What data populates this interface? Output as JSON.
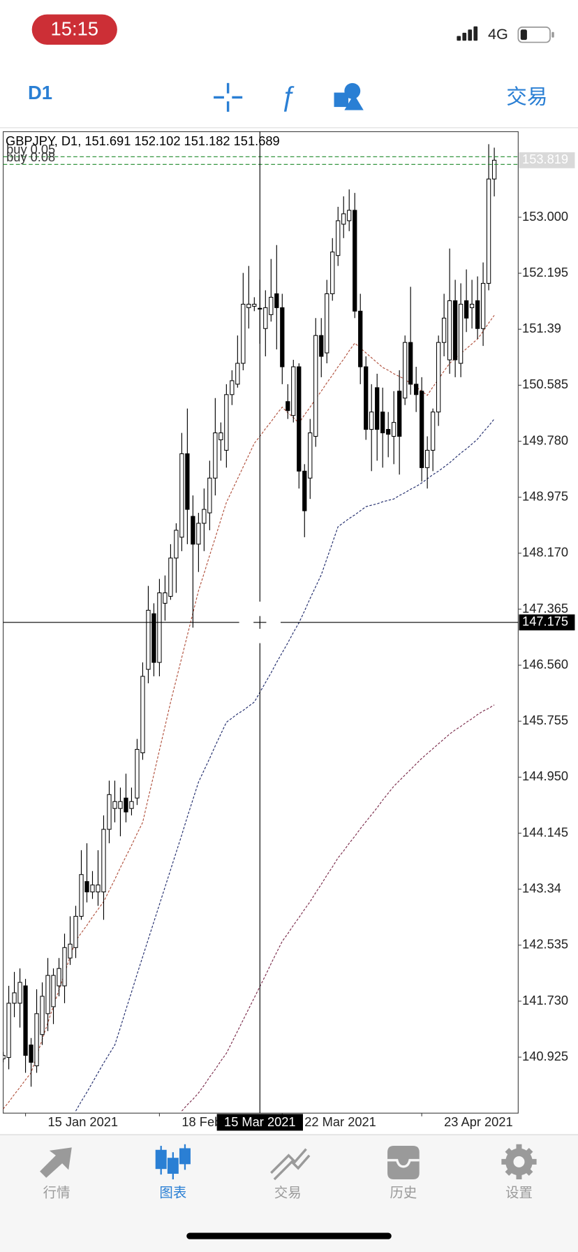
{
  "status_bar": {
    "time": "15:15",
    "network": "4G"
  },
  "toolbar": {
    "timeframe": "D1",
    "trade": "交易"
  },
  "chart_data": {
    "type": "candlestick",
    "header": "GBPJPY, D1, 151.691 152.102 151.182 151.689",
    "categories": [
      null,
      null,
      null,
      null,
      "15 Jan 2021",
      null,
      null,
      null,
      null,
      null,
      null,
      null,
      null,
      null,
      null,
      null,
      null,
      null,
      null,
      null,
      null,
      null,
      null,
      null,
      null,
      null,
      null,
      null,
      "18 Feb 2021",
      null,
      null,
      null,
      null,
      null,
      null,
      null,
      null,
      null,
      null,
      null,
      null,
      null,
      null,
      null,
      null,
      null,
      null,
      null,
      null,
      null,
      "22 Mar 2021",
      null,
      null,
      null,
      null,
      null,
      null,
      null,
      null,
      null,
      null,
      null,
      null,
      null,
      null,
      null,
      null,
      null,
      null,
      null,
      null,
      null,
      null,
      null,
      null,
      "23 Apr 2021",
      null,
      null,
      null,
      null,
      null,
      null,
      null,
      null,
      null,
      null,
      null,
      null,
      null
    ],
    "open": [
      140.9,
      140.92,
      141.7,
      141.7,
      141.95,
      141.1,
      140.8,
      141.25,
      141.55,
      141.65,
      141.95,
      141.95,
      142.35,
      142.5,
      142.95,
      143.45,
      143.3,
      143.3,
      143.3,
      144.2,
      144.5,
      144.5,
      144.65,
      144.5,
      144.65,
      145.3,
      146.5,
      147.3,
      146.6,
      147.45,
      147.55,
      148.1,
      148.4,
      149.6,
      148.7,
      148.3,
      148.6,
      148.75,
      149.25,
      149.8,
      149.65,
      150.45,
      150.6,
      150.9,
      151.7,
      151.72,
      151.691,
      151.4,
      151.6,
      151.9,
      151.7,
      150.35,
      150.15,
      150.85,
      149.35,
      149.25,
      149.85,
      151.3,
      151.05,
      151.9,
      152.45,
      152.9,
      152.95,
      153.1,
      151.65,
      150.85,
      149.95,
      150.55,
      150.2,
      149.95,
      149.85,
      150.5,
      150.4,
      151.2,
      150.6,
      150.5,
      149.4,
      149.65,
      150.2,
      151.2,
      150.95,
      151.8,
      150.9,
      151.8,
      151.7,
      151.8,
      151.4,
      152.05,
      153.55
    ],
    "high": [
      141.0,
      141.95,
      142.15,
      142.2,
      142.05,
      141.2,
      141.9,
      142.0,
      142.35,
      142.2,
      142.35,
      142.7,
      142.95,
      143.1,
      143.9,
      144.0,
      143.6,
      143.9,
      144.4,
      144.9,
      144.9,
      144.8,
      145.0,
      144.8,
      145.5,
      146.6,
      147.7,
      147.45,
      147.8,
      147.85,
      148.3,
      148.6,
      149.9,
      150.25,
      149.0,
      148.75,
      149.1,
      149.5,
      150.4,
      150.05,
      150.6,
      150.8,
      151.3,
      152.2,
      152.3,
      151.85,
      152.102,
      151.95,
      152.4,
      152.6,
      151.9,
      150.6,
      150.95,
      150.9,
      149.45,
      150.1,
      151.55,
      151.55,
      152.1,
      152.7,
      153.15,
      153.3,
      153.4,
      153.35,
      151.9,
      151.0,
      150.6,
      150.75,
      150.55,
      150.2,
      150.5,
      150.8,
      151.3,
      152.0,
      150.85,
      150.7,
      149.85,
      150.25,
      151.3,
      151.9,
      152.55,
      152.1,
      152.05,
      152.25,
      152.1,
      152.15,
      152.35,
      154.05,
      154.0
    ],
    "low": [
      140.85,
      140.75,
      141.5,
      141.35,
      140.7,
      140.5,
      140.7,
      141.1,
      141.3,
      141.4,
      141.8,
      141.7,
      142.25,
      142.35,
      142.9,
      143.15,
      143.2,
      143.1,
      142.9,
      144.0,
      144.3,
      144.1,
      144.3,
      144.4,
      144.55,
      145.2,
      146.3,
      146.4,
      146.4,
      147.2,
      147.5,
      147.6,
      148.2,
      148.3,
      147.1,
      147.9,
      148.2,
      148.5,
      149.0,
      149.5,
      149.4,
      150.3,
      150.55,
      150.8,
      151.4,
      151.65,
      151.182,
      151.0,
      151.5,
      151.1,
      150.6,
      150.1,
      150.05,
      149.1,
      148.4,
      148.95,
      149.7,
      150.7,
      150.9,
      151.8,
      152.3,
      152.7,
      152.8,
      151.55,
      150.6,
      149.8,
      149.35,
      149.5,
      149.4,
      149.55,
      149.45,
      149.3,
      150.3,
      150.45,
      150.2,
      149.2,
      149.1,
      149.35,
      150.0,
      151.0,
      150.75,
      150.7,
      150.7,
      151.35,
      151.4,
      151.25,
      151.15,
      151.95,
      153.3
    ],
    "close": [
      140.95,
      141.7,
      141.85,
      142.0,
      140.95,
      140.85,
      141.55,
      141.8,
      142.1,
      142.1,
      142.2,
      142.5,
      142.55,
      142.95,
      143.55,
      143.3,
      143.4,
      143.4,
      144.2,
      144.7,
      144.6,
      144.6,
      144.45,
      144.6,
      145.35,
      146.4,
      147.35,
      146.6,
      147.6,
      147.6,
      148.1,
      148.5,
      149.6,
      148.8,
      148.3,
      148.6,
      148.8,
      149.25,
      149.9,
      149.9,
      150.45,
      150.65,
      150.9,
      151.75,
      151.75,
      151.75,
      151.689,
      151.7,
      151.85,
      151.7,
      150.85,
      150.22,
      150.85,
      149.35,
      148.78,
      149.9,
      151.3,
      151.0,
      151.9,
      152.5,
      152.95,
      153.05,
      153.1,
      151.65,
      150.85,
      149.95,
      150.2,
      149.95,
      149.9,
      149.88,
      150.05,
      149.85,
      151.2,
      150.6,
      150.45,
      149.4,
      149.65,
      150.2,
      151.2,
      151.55,
      151.8,
      150.95,
      151.75,
      151.55,
      151.75,
      151.4,
      152.05,
      153.55,
      153.82
    ],
    "up_color": "#ffffff",
    "down_color": "#000000",
    "lines": [
      {
        "color": "#b0503c",
        "values": [
          140.18,
          140.28,
          140.39,
          140.49,
          140.6,
          140.7,
          140.94,
          141.18,
          141.42,
          141.66,
          141.89,
          142.13,
          142.37,
          142.6,
          142.71,
          142.82,
          142.94,
          143.05,
          143.16,
          143.32,
          143.48,
          143.65,
          143.81,
          143.97,
          144.14,
          144.3,
          144.65,
          144.99,
          145.34,
          145.68,
          146.03,
          146.35,
          146.67,
          146.99,
          147.31,
          147.63,
          147.88,
          148.14,
          148.39,
          148.65,
          148.9,
          149.07,
          149.24,
          149.41,
          149.58,
          149.75,
          149.85,
          149.96,
          150.06,
          150.17,
          150.27,
          150.19,
          150.12,
          150.04,
          150.16,
          150.27,
          150.39,
          150.5,
          150.62,
          150.73,
          150.85,
          150.96,
          151.08,
          151.19,
          151.12,
          151.05,
          150.98,
          150.91,
          150.84,
          150.8,
          150.75,
          150.71,
          150.67,
          150.61,
          150.56,
          150.5,
          150.44,
          150.56,
          150.67,
          150.79,
          150.9,
          150.97,
          151.04,
          151.11,
          151.18,
          151.25,
          151.36,
          151.48,
          151.59
        ]
      },
      {
        "color": "#1f2a6b",
        "values": [
          null,
          null,
          null,
          null,
          null,
          null,
          null,
          null,
          null,
          null,
          null,
          null,
          null,
          140.15,
          140.29,
          140.42,
          140.56,
          140.7,
          140.84,
          140.97,
          141.1,
          141.35,
          141.61,
          141.86,
          142.12,
          142.37,
          142.62,
          142.87,
          143.12,
          143.37,
          143.62,
          143.87,
          144.12,
          144.38,
          144.63,
          144.88,
          145.05,
          145.22,
          145.4,
          145.57,
          145.74,
          145.8,
          145.86,
          145.91,
          145.97,
          146.03,
          146.17,
          146.31,
          146.45,
          146.6,
          146.74,
          146.88,
          147.03,
          147.17,
          147.34,
          147.52,
          147.69,
          147.86,
          148.09,
          148.32,
          148.55,
          148.61,
          148.67,
          148.72,
          148.78,
          148.84,
          148.86,
          148.88,
          148.91,
          148.93,
          148.95,
          149.0,
          149.04,
          149.09,
          149.13,
          149.18,
          149.24,
          149.3,
          149.35,
          149.41,
          149.47,
          149.54,
          149.61,
          149.67,
          149.74,
          149.81,
          149.91,
          150.0,
          150.1
        ]
      },
      {
        "color": "#7a2a4a",
        "values": [
          null,
          null,
          null,
          null,
          null,
          null,
          null,
          null,
          null,
          null,
          null,
          null,
          null,
          null,
          null,
          null,
          null,
          null,
          null,
          null,
          null,
          null,
          null,
          null,
          null,
          null,
          null,
          null,
          null,
          null,
          null,
          null,
          140.15,
          140.24,
          140.32,
          140.41,
          140.52,
          140.64,
          140.75,
          140.87,
          140.98,
          141.14,
          141.3,
          141.46,
          141.62,
          141.78,
          141.94,
          142.1,
          142.27,
          142.43,
          142.59,
          142.7,
          142.82,
          142.93,
          143.05,
          143.16,
          143.29,
          143.41,
          143.54,
          143.66,
          143.79,
          143.89,
          144.0,
          144.1,
          144.21,
          144.31,
          144.41,
          144.51,
          144.62,
          144.72,
          144.82,
          144.9,
          144.98,
          145.06,
          145.14,
          145.22,
          145.29,
          145.36,
          145.43,
          145.5,
          145.57,
          145.63,
          145.68,
          145.74,
          145.79,
          145.85,
          145.9,
          145.94,
          145.99
        ]
      }
    ],
    "ylim": [
      140.12,
      154.23
    ],
    "yticks": [
      140.925,
      {
        "value": 141.73,
        "label": "141.730"
      },
      142.535,
      143.34,
      144.145,
      {
        "value": 144.95,
        "label": "144.950"
      },
      145.755,
      {
        "value": 146.56,
        "label": "146.560"
      },
      147.365,
      {
        "value": 148.17,
        "label": "148.170"
      },
      148.975,
      {
        "value": 149.78,
        "label": "149.780"
      },
      150.585,
      151.39,
      152.195,
      {
        "value": 153.0,
        "label": "153.000"
      }
    ],
    "grid": false,
    "last_price": 153.819,
    "crosshair": {
      "x_index": 46,
      "date": "15 Mar 2021",
      "price": 147.175
    },
    "orders": [
      {
        "label": "buy 0.05",
        "price": 153.87
      },
      {
        "label": "buy 0.08",
        "price": 153.76
      }
    ],
    "order_color": "#1f8a2a"
  },
  "tabs": [
    "行情",
    "图表",
    "交易",
    "历史",
    "设置"
  ],
  "active_tab": 1
}
